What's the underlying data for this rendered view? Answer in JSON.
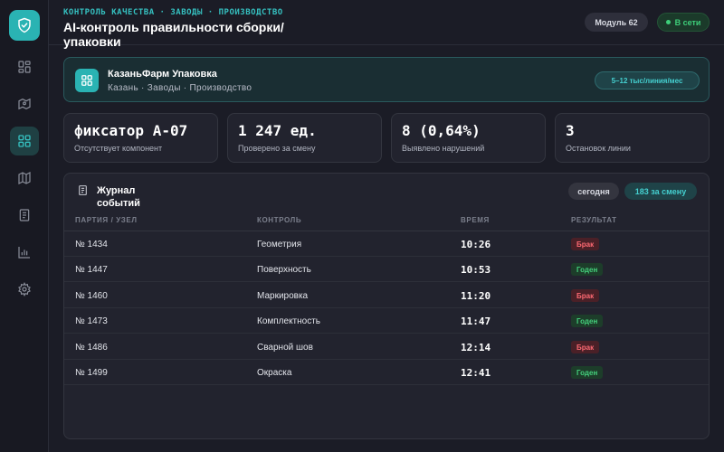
{
  "header": {
    "breadcrumb": "КОНТРОЛЬ КАЧЕСТВА · ЗАВОДЫ · ПРОИЗВОДСТВО",
    "title": "AI-контроль правильности сборки/упаковки",
    "module": "Модуль 62",
    "status": "В сети"
  },
  "sidebar": {
    "logo_icon": "shield-check-icon",
    "items": [
      {
        "icon": "dashboard-icon",
        "active": false
      },
      {
        "icon": "map-pin-icon",
        "active": false
      },
      {
        "icon": "grid-icon",
        "active": true
      },
      {
        "icon": "map-icon",
        "active": false
      },
      {
        "icon": "document-icon",
        "active": false
      },
      {
        "icon": "bar-chart-icon",
        "active": false
      },
      {
        "icon": "gear-icon",
        "active": false
      }
    ]
  },
  "company": {
    "name": "КазаньФарм Упаковка",
    "location": "Казань · Заводы · Производство",
    "capacity": "5–12 тыс/линия/мес"
  },
  "stats": [
    {
      "value": "фиксатор А-07",
      "label": "Отсутствует компонент"
    },
    {
      "value": "1 247 ед.",
      "label": "Проверено за смену"
    },
    {
      "value": "8 (0,64%)",
      "label": "Выявлено нарушений"
    },
    {
      "value": "3",
      "label": "Остановок линии"
    }
  ],
  "log": {
    "title": "Журнал событий",
    "filter": "сегодня",
    "count": "183 за смену",
    "columns": [
      "ПАРТИЯ / УЗЕЛ",
      "КОНТРОЛЬ",
      "ВРЕМЯ",
      "РЕЗУЛЬТАТ"
    ],
    "rows": [
      {
        "batch": "№ 1434",
        "control": "Геометрия",
        "time": "10:26",
        "result": "Брак",
        "status": "bad"
      },
      {
        "batch": "№ 1447",
        "control": "Поверхность",
        "time": "10:53",
        "result": "Годен",
        "status": "good"
      },
      {
        "batch": "№ 1460",
        "control": "Маркировка",
        "time": "11:20",
        "result": "Брак",
        "status": "bad"
      },
      {
        "batch": "№ 1473",
        "control": "Комплектность",
        "time": "11:47",
        "result": "Годен",
        "status": "good"
      },
      {
        "batch": "№ 1486",
        "control": "Сварной шов",
        "time": "12:14",
        "result": "Брак",
        "status": "bad"
      },
      {
        "batch": "№ 1499",
        "control": "Окраска",
        "time": "12:41",
        "result": "Годен",
        "status": "good"
      }
    ]
  },
  "colors": {
    "accent": "#2ab3b3",
    "bad": "#ff6a73",
    "good": "#44d07c"
  }
}
